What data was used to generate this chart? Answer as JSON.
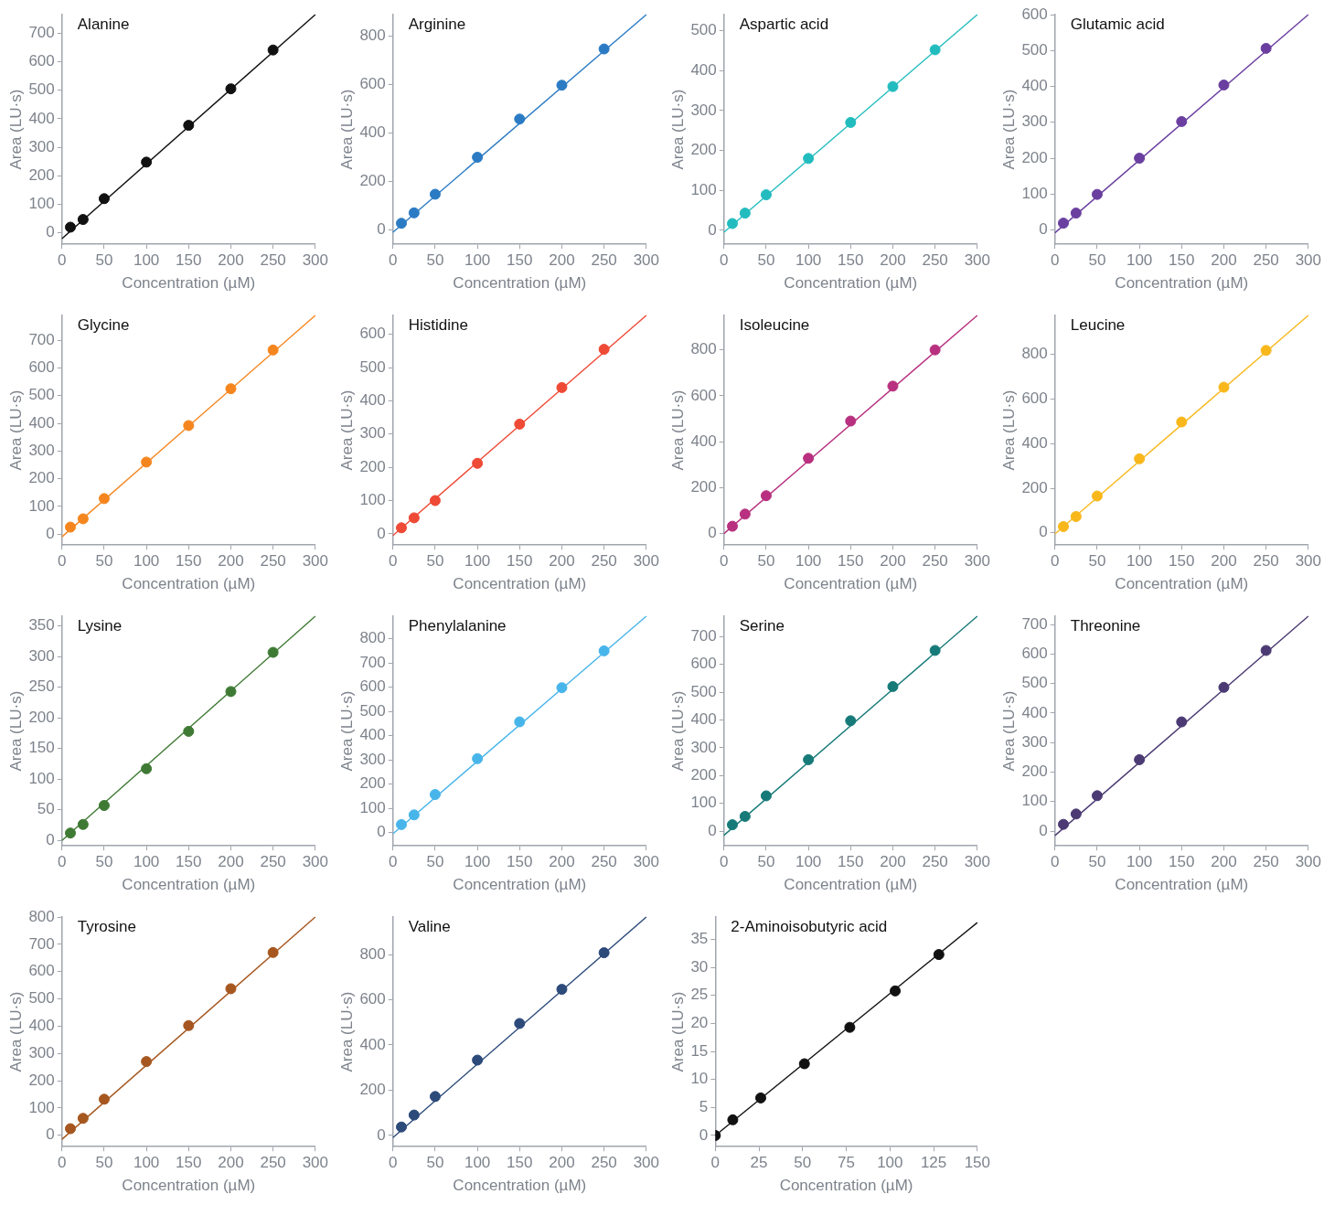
{
  "chart_data": [
    {
      "type": "scatter",
      "title": "Alanine",
      "xlabel": "Concentration (µM)",
      "ylabel": "Area (LU·s)",
      "xlim": [
        0,
        300
      ],
      "xticks": [
        0,
        50,
        100,
        150,
        200,
        250,
        300
      ],
      "ylim": [
        -40,
        765
      ],
      "yticks": [
        0,
        100,
        200,
        300,
        400,
        500,
        600,
        700
      ],
      "series": [
        {
          "color": "#111111",
          "marker": "circle",
          "x": [
            10,
            25,
            50,
            100,
            150,
            200,
            250
          ],
          "values": [
            20,
            47,
            120,
            248,
            377,
            505,
            641
          ]
        },
        {
          "type": "line",
          "color": "#111111",
          "x": [
            0,
            300
          ],
          "values": [
            -20,
            765
          ]
        }
      ]
    },
    {
      "type": "scatter",
      "title": "Arginine",
      "xlabel": "Concentration (µM)",
      "ylabel": "Area (LU·s)",
      "xlim": [
        0,
        300
      ],
      "xticks": [
        0,
        50,
        100,
        150,
        200,
        250,
        300
      ],
      "ylim": [
        -60,
        890
      ],
      "yticks": [
        0,
        200,
        400,
        600,
        800
      ],
      "series": [
        {
          "color": "#2b7bc4",
          "marker": "circle",
          "x": [
            10,
            25,
            50,
            100,
            150,
            200,
            250
          ],
          "values": [
            27,
            70,
            147,
            300,
            458,
            598,
            748
          ]
        },
        {
          "type": "line",
          "color": "#2b7bc4",
          "x": [
            0,
            300
          ],
          "values": [
            -10,
            890
          ]
        }
      ]
    },
    {
      "type": "scatter",
      "title": "Aspartic acid",
      "xlabel": "Concentration (µM)",
      "ylabel": "Area (LU·s)",
      "xlim": [
        0,
        300
      ],
      "xticks": [
        0,
        50,
        100,
        150,
        200,
        250,
        300
      ],
      "ylim": [
        -35,
        540
      ],
      "yticks": [
        0,
        100,
        200,
        300,
        400,
        500
      ],
      "series": [
        {
          "color": "#22bcbf",
          "marker": "circle",
          "x": [
            10,
            25,
            50,
            100,
            150,
            200,
            250
          ],
          "values": [
            17,
            43,
            89,
            180,
            270,
            360,
            452
          ]
        },
        {
          "type": "line",
          "color": "#22bcbf",
          "x": [
            0,
            300
          ],
          "values": [
            -5,
            540
          ]
        }
      ]
    },
    {
      "type": "scatter",
      "title": "Glutamic acid",
      "xlabel": "Concentration (µM)",
      "ylabel": "Area (LU·s)",
      "xlim": [
        0,
        300
      ],
      "xticks": [
        0,
        50,
        100,
        150,
        200,
        250,
        300
      ],
      "ylim": [
        -40,
        600
      ],
      "yticks": [
        0,
        100,
        200,
        300,
        400,
        500,
        600
      ],
      "series": [
        {
          "color": "#6a3fa0",
          "marker": "circle",
          "x": [
            10,
            25,
            50,
            100,
            150,
            200,
            250
          ],
          "values": [
            19,
            47,
            99,
            200,
            302,
            404,
            506
          ]
        },
        {
          "type": "line",
          "color": "#6a3fa0",
          "x": [
            0,
            300
          ],
          "values": [
            -8,
            600
          ]
        }
      ]
    },
    {
      "type": "scatter",
      "title": "Glycine",
      "xlabel": "Concentration (µM)",
      "ylabel": "Area (LU·s)",
      "xlim": [
        0,
        300
      ],
      "xticks": [
        0,
        50,
        100,
        150,
        200,
        250,
        300
      ],
      "ylim": [
        -40,
        790
      ],
      "yticks": [
        0,
        100,
        200,
        300,
        400,
        500,
        600,
        700
      ],
      "series": [
        {
          "color": "#f5861f",
          "marker": "circle",
          "x": [
            10,
            25,
            50,
            100,
            150,
            200,
            250
          ],
          "values": [
            25,
            55,
            128,
            260,
            392,
            525,
            665
          ]
        },
        {
          "type": "line",
          "color": "#f5861f",
          "x": [
            0,
            300
          ],
          "values": [
            -10,
            790
          ]
        }
      ]
    },
    {
      "type": "scatter",
      "title": "Histidine",
      "xlabel": "Concentration (µM)",
      "ylabel": "Area (LU·s)",
      "xlim": [
        0,
        300
      ],
      "xticks": [
        0,
        50,
        100,
        150,
        200,
        250,
        300
      ],
      "ylim": [
        -34,
        657
      ],
      "yticks": [
        0,
        100,
        200,
        300,
        400,
        500,
        600
      ],
      "series": [
        {
          "color": "#ee4a36",
          "marker": "circle",
          "x": [
            10,
            25,
            50,
            100,
            150,
            200,
            250
          ],
          "values": [
            18,
            48,
            100,
            212,
            330,
            440,
            555
          ]
        },
        {
          "type": "line",
          "color": "#ee4a36",
          "x": [
            0,
            300
          ],
          "values": [
            -5,
            657
          ]
        }
      ]
    },
    {
      "type": "scatter",
      "title": "Isoleucine",
      "xlabel": "Concentration (µM)",
      "ylabel": "Area (LU·s)",
      "xlim": [
        0,
        300
      ],
      "xticks": [
        0,
        50,
        100,
        150,
        200,
        250,
        300
      ],
      "ylim": [
        -50,
        950
      ],
      "yticks": [
        0,
        200,
        400,
        600,
        800
      ],
      "series": [
        {
          "color": "#b8307f",
          "marker": "circle",
          "x": [
            10,
            25,
            50,
            100,
            150,
            200,
            250
          ],
          "values": [
            32,
            85,
            165,
            328,
            490,
            642,
            800
          ]
        },
        {
          "type": "line",
          "color": "#b8307f",
          "x": [
            0,
            300
          ],
          "values": [
            0,
            950
          ]
        }
      ]
    },
    {
      "type": "scatter",
      "title": "Leucine",
      "xlabel": "Concentration (µM)",
      "ylabel": "Area (LU·s)",
      "xlim": [
        0,
        300
      ],
      "xticks": [
        0,
        50,
        100,
        150,
        200,
        250,
        300
      ],
      "ylim": [
        -55,
        975
      ],
      "yticks": [
        0,
        200,
        400,
        600,
        800
      ],
      "series": [
        {
          "color": "#f8b81c",
          "marker": "circle",
          "x": [
            10,
            25,
            50,
            100,
            150,
            200,
            250
          ],
          "values": [
            28,
            73,
            165,
            332,
            497,
            653,
            818
          ]
        },
        {
          "type": "line",
          "color": "#f8b81c",
          "x": [
            0,
            300
          ],
          "values": [
            -5,
            975
          ]
        }
      ]
    },
    {
      "type": "scatter",
      "title": "Lysine",
      "xlabel": "Concentration (µM)",
      "ylabel": "Area (LU·s)",
      "xlim": [
        0,
        300
      ],
      "xticks": [
        0,
        50,
        100,
        150,
        200,
        250,
        300
      ],
      "ylim": [
        -9,
        366
      ],
      "yticks": [
        0,
        50,
        100,
        150,
        200,
        250,
        300,
        350
      ],
      "series": [
        {
          "color": "#3f7a34",
          "marker": "circle",
          "x": [
            10,
            25,
            50,
            100,
            150,
            200,
            250
          ],
          "values": [
            12,
            26,
            57,
            117,
            178,
            243,
            307
          ]
        },
        {
          "type": "line",
          "color": "#3f7a34",
          "x": [
            0,
            300
          ],
          "values": [
            0,
            366
          ]
        }
      ]
    },
    {
      "type": "scatter",
      "title": "Phenylalanine",
      "xlabel": "Concentration (µM)",
      "ylabel": "Area (LU·s)",
      "xlim": [
        0,
        300
      ],
      "xticks": [
        0,
        50,
        100,
        150,
        200,
        250,
        300
      ],
      "ylim": [
        -55,
        893
      ],
      "yticks": [
        0,
        100,
        200,
        300,
        400,
        500,
        600,
        700,
        800
      ],
      "series": [
        {
          "color": "#48b5ea",
          "marker": "circle",
          "x": [
            10,
            25,
            50,
            100,
            150,
            200,
            250
          ],
          "values": [
            33,
            73,
            157,
            305,
            457,
            598,
            750
          ]
        },
        {
          "type": "line",
          "color": "#48b5ea",
          "x": [
            0,
            300
          ],
          "values": [
            -5,
            893
          ]
        }
      ]
    },
    {
      "type": "scatter",
      "title": "Serine",
      "xlabel": "Concentration (µM)",
      "ylabel": "Area (LU·s)",
      "xlim": [
        0,
        300
      ],
      "xticks": [
        0,
        50,
        100,
        150,
        200,
        250,
        300
      ],
      "ylim": [
        -53,
        773
      ],
      "yticks": [
        0,
        100,
        200,
        300,
        400,
        500,
        600,
        700
      ],
      "series": [
        {
          "color": "#167a78",
          "marker": "circle",
          "x": [
            10,
            25,
            50,
            100,
            150,
            200,
            250
          ],
          "values": [
            23,
            53,
            127,
            257,
            397,
            520,
            650
          ]
        },
        {
          "type": "line",
          "color": "#167a78",
          "x": [
            0,
            300
          ],
          "values": [
            -15,
            773
          ]
        }
      ]
    },
    {
      "type": "scatter",
      "title": "Threonine",
      "xlabel": "Concentration (µM)",
      "ylabel": "Area (LU·s)",
      "xlim": [
        0,
        300
      ],
      "xticks": [
        0,
        50,
        100,
        150,
        200,
        250,
        300
      ],
      "ylim": [
        -50,
        728
      ],
      "yticks": [
        0,
        100,
        200,
        300,
        400,
        500,
        600,
        700
      ],
      "series": [
        {
          "color": "#4b3a73",
          "marker": "circle",
          "x": [
            10,
            25,
            50,
            100,
            150,
            200,
            250
          ],
          "values": [
            23,
            58,
            120,
            242,
            370,
            487,
            612
          ]
        },
        {
          "type": "line",
          "color": "#4b3a73",
          "x": [
            0,
            300
          ],
          "values": [
            -15,
            728
          ]
        }
      ]
    },
    {
      "type": "scatter",
      "title": "Tyrosine",
      "xlabel": "Concentration (µM)",
      "ylabel": "Area (LU·s)",
      "xlim": [
        0,
        300
      ],
      "xticks": [
        0,
        50,
        100,
        150,
        200,
        250,
        300
      ],
      "ylim": [
        -42,
        800
      ],
      "yticks": [
        0,
        100,
        200,
        300,
        400,
        500,
        600,
        700,
        800
      ],
      "series": [
        {
          "color": "#a6571f",
          "marker": "circle",
          "x": [
            10,
            25,
            50,
            100,
            150,
            200,
            250
          ],
          "values": [
            24,
            62,
            132,
            270,
            402,
            537,
            670
          ]
        },
        {
          "type": "line",
          "color": "#a6571f",
          "x": [
            0,
            300
          ],
          "values": [
            -15,
            800
          ]
        }
      ]
    },
    {
      "type": "scatter",
      "title": "Valine",
      "xlabel": "Concentration (µM)",
      "ylabel": "Area (LU·s)",
      "xlim": [
        0,
        300
      ],
      "xticks": [
        0,
        50,
        100,
        150,
        200,
        250,
        300
      ],
      "ylim": [
        -50,
        966
      ],
      "yticks": [
        0,
        200,
        400,
        600,
        800
      ],
      "series": [
        {
          "color": "#2c4a7a",
          "marker": "circle",
          "x": [
            10,
            25,
            50,
            100,
            150,
            200,
            250
          ],
          "values": [
            37,
            90,
            172,
            333,
            495,
            646,
            808
          ]
        },
        {
          "type": "line",
          "color": "#2c4a7a",
          "x": [
            0,
            300
          ],
          "values": [
            -10,
            966
          ]
        }
      ]
    },
    {
      "type": "scatter",
      "title": "2-Aminoisobutyric acid",
      "xlabel": "Concentration (µM)",
      "ylabel": "Area (LU·s)",
      "xlim": [
        0,
        150
      ],
      "xticks": [
        0,
        25,
        50,
        75,
        100,
        125,
        150
      ],
      "ylim": [
        -2,
        39
      ],
      "yticks": [
        0,
        5,
        10,
        15,
        20,
        25,
        30,
        35
      ],
      "series": [
        {
          "color": "#111111",
          "marker": "circle",
          "x": [
            0,
            10,
            26,
            51,
            77,
            103,
            128
          ],
          "values": [
            0,
            2.8,
            6.7,
            12.8,
            19.3,
            25.8,
            32.3
          ]
        },
        {
          "type": "line",
          "color": "#111111",
          "x": [
            0,
            150
          ],
          "values": [
            0,
            38
          ]
        }
      ]
    }
  ]
}
